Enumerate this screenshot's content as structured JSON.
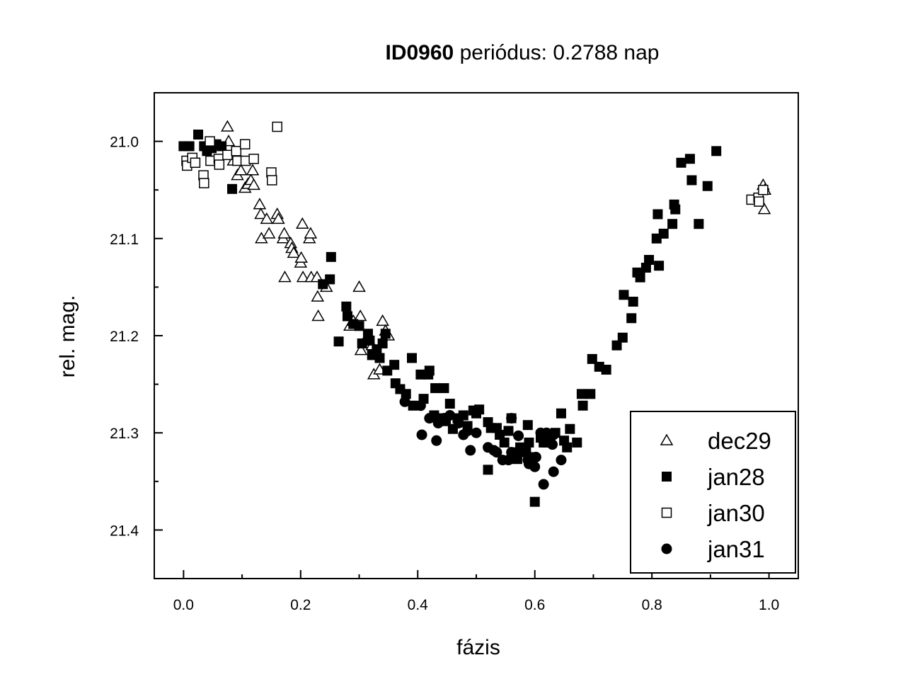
{
  "chart_data": {
    "type": "scatter",
    "title": {
      "bold": "ID0960",
      "rest": " periódus: 0.2788 nap"
    },
    "xlabel": "fázis",
    "ylabel": "rel. mag.",
    "xlim": [
      -0.05,
      1.05
    ],
    "ylim": [
      21.45,
      20.95
    ],
    "y_inverted": true,
    "xticks": [
      "0.0",
      "0.2",
      "0.4",
      "0.6",
      "0.8",
      "1.0"
    ],
    "xtick_values": [
      0,
      0.2,
      0.4,
      0.6,
      0.8,
      1.0
    ],
    "yticks": [
      "21.0",
      "21.1",
      "21.2",
      "21.3",
      "21.4"
    ],
    "ytick_values": [
      21.0,
      21.1,
      21.2,
      21.3,
      21.4
    ],
    "grid": false,
    "legend_position": "bottom-right",
    "series": [
      {
        "name": "dec29",
        "marker": "open-triangle",
        "points": [
          [
            0.075,
            20.985
          ],
          [
            0.077,
            21.0
          ],
          [
            0.085,
            21.02
          ],
          [
            0.092,
            21.035
          ],
          [
            0.098,
            21.03
          ],
          [
            0.105,
            21.048
          ],
          [
            0.11,
            21.044
          ],
          [
            0.115,
            21.04
          ],
          [
            0.118,
            21.03
          ],
          [
            0.12,
            21.045
          ],
          [
            0.13,
            21.065
          ],
          [
            0.132,
            21.075
          ],
          [
            0.133,
            21.1
          ],
          [
            0.142,
            21.08
          ],
          [
            0.146,
            21.095
          ],
          [
            0.16,
            21.075
          ],
          [
            0.162,
            21.08
          ],
          [
            0.17,
            21.1
          ],
          [
            0.172,
            21.095
          ],
          [
            0.173,
            21.14
          ],
          [
            0.183,
            21.105
          ],
          [
            0.185,
            21.11
          ],
          [
            0.188,
            21.115
          ],
          [
            0.2,
            21.125
          ],
          [
            0.201,
            21.12
          ],
          [
            0.203,
            21.085
          ],
          [
            0.204,
            21.14
          ],
          [
            0.215,
            21.1
          ],
          [
            0.217,
            21.095
          ],
          [
            0.218,
            21.14
          ],
          [
            0.228,
            21.14
          ],
          [
            0.229,
            21.16
          ],
          [
            0.23,
            21.18
          ],
          [
            0.244,
            21.15
          ],
          [
            0.284,
            21.19
          ],
          [
            0.29,
            21.185
          ],
          [
            0.3,
            21.15
          ],
          [
            0.302,
            21.18
          ],
          [
            0.303,
            21.215
          ],
          [
            0.31,
            21.205
          ],
          [
            0.322,
            21.21
          ],
          [
            0.325,
            21.24
          ],
          [
            0.335,
            21.235
          ],
          [
            0.34,
            21.185
          ],
          [
            0.345,
            21.195
          ],
          [
            0.35,
            21.2
          ],
          [
            0.99,
            21.045
          ],
          [
            0.992,
            21.07
          ],
          [
            0.993,
            21.05
          ]
        ]
      },
      {
        "name": "jan28",
        "marker": "filled-square",
        "points": [
          [
            0.0,
            21.005
          ],
          [
            0.01,
            21.005
          ],
          [
            0.025,
            20.993
          ],
          [
            0.035,
            21.005
          ],
          [
            0.04,
            21.01
          ],
          [
            0.048,
            21.007
          ],
          [
            0.056,
            21.003
          ],
          [
            0.065,
            21.005
          ],
          [
            0.083,
            21.049
          ],
          [
            0.238,
            21.147
          ],
          [
            0.25,
            21.142
          ],
          [
            0.252,
            21.119
          ],
          [
            0.265,
            21.206
          ],
          [
            0.278,
            21.17
          ],
          [
            0.28,
            21.18
          ],
          [
            0.29,
            21.188
          ],
          [
            0.3,
            21.19
          ],
          [
            0.305,
            21.208
          ],
          [
            0.315,
            21.198
          ],
          [
            0.318,
            21.205
          ],
          [
            0.322,
            21.22
          ],
          [
            0.33,
            21.214
          ],
          [
            0.335,
            21.223
          ],
          [
            0.34,
            21.208
          ],
          [
            0.345,
            21.198
          ],
          [
            0.348,
            21.236
          ],
          [
            0.36,
            21.23
          ],
          [
            0.362,
            21.249
          ],
          [
            0.37,
            21.255
          ],
          [
            0.38,
            21.26
          ],
          [
            0.39,
            21.223
          ],
          [
            0.392,
            21.272
          ],
          [
            0.405,
            21.24
          ],
          [
            0.41,
            21.265
          ],
          [
            0.418,
            21.24
          ],
          [
            0.42,
            21.236
          ],
          [
            0.428,
            21.282
          ],
          [
            0.43,
            21.254
          ],
          [
            0.435,
            21.285
          ],
          [
            0.445,
            21.254
          ],
          [
            0.448,
            21.288
          ],
          [
            0.455,
            21.27
          ],
          [
            0.46,
            21.296
          ],
          [
            0.468,
            21.285
          ],
          [
            0.478,
            21.282
          ],
          [
            0.485,
            21.293
          ],
          [
            0.495,
            21.277
          ],
          [
            0.5,
            21.28
          ],
          [
            0.505,
            21.276
          ],
          [
            0.52,
            21.338
          ],
          [
            0.52,
            21.289
          ],
          [
            0.525,
            21.295
          ],
          [
            0.535,
            21.295
          ],
          [
            0.54,
            21.302
          ],
          [
            0.548,
            21.31
          ],
          [
            0.555,
            21.298
          ],
          [
            0.56,
            21.285
          ],
          [
            0.565,
            21.32
          ],
          [
            0.57,
            21.327
          ],
          [
            0.575,
            21.315
          ],
          [
            0.58,
            21.318
          ],
          [
            0.585,
            21.32
          ],
          [
            0.588,
            21.292
          ],
          [
            0.59,
            21.31
          ],
          [
            0.595,
            21.325
          ],
          [
            0.6,
            21.371
          ],
          [
            0.61,
            21.305
          ],
          [
            0.615,
            21.31
          ],
          [
            0.62,
            21.31
          ],
          [
            0.625,
            21.31
          ],
          [
            0.635,
            21.3
          ],
          [
            0.645,
            21.28
          ],
          [
            0.65,
            21.308
          ],
          [
            0.655,
            21.315
          ],
          [
            0.66,
            21.296
          ],
          [
            0.672,
            21.31
          ],
          [
            0.68,
            21.26
          ],
          [
            0.682,
            21.272
          ],
          [
            0.695,
            21.26
          ],
          [
            0.698,
            21.224
          ],
          [
            0.71,
            21.232
          ],
          [
            0.722,
            21.235
          ],
          [
            0.74,
            21.21
          ],
          [
            0.75,
            21.202
          ],
          [
            0.752,
            21.158
          ],
          [
            0.765,
            21.182
          ],
          [
            0.768,
            21.165
          ],
          [
            0.775,
            21.135
          ],
          [
            0.78,
            21.14
          ],
          [
            0.79,
            21.13
          ],
          [
            0.795,
            21.122
          ],
          [
            0.808,
            21.1
          ],
          [
            0.812,
            21.128
          ],
          [
            0.81,
            21.075
          ],
          [
            0.82,
            21.095
          ],
          [
            0.835,
            21.085
          ],
          [
            0.838,
            21.065
          ],
          [
            0.84,
            21.07
          ],
          [
            0.85,
            21.022
          ],
          [
            0.865,
            21.018
          ],
          [
            0.868,
            21.04
          ],
          [
            0.88,
            21.085
          ],
          [
            0.895,
            21.046
          ],
          [
            0.91,
            21.01
          ]
        ]
      },
      {
        "name": "jan30",
        "marker": "open-square",
        "points": [
          [
            0.005,
            21.02
          ],
          [
            0.006,
            21.025
          ],
          [
            0.015,
            21.017
          ],
          [
            0.02,
            21.022
          ],
          [
            0.034,
            21.035
          ],
          [
            0.035,
            21.043
          ],
          [
            0.045,
            21.0
          ],
          [
            0.046,
            21.02
          ],
          [
            0.06,
            21.018
          ],
          [
            0.061,
            21.024
          ],
          [
            0.075,
            21.014
          ],
          [
            0.09,
            21.01
          ],
          [
            0.092,
            21.02
          ],
          [
            0.105,
            21.003
          ],
          [
            0.106,
            21.02
          ],
          [
            0.12,
            21.018
          ],
          [
            0.15,
            21.032
          ],
          [
            0.151,
            21.04
          ],
          [
            0.16,
            20.985
          ],
          [
            0.97,
            21.06
          ],
          [
            0.982,
            21.058
          ],
          [
            0.983,
            21.062
          ],
          [
            0.99,
            21.05
          ]
        ]
      },
      {
        "name": "jan31",
        "marker": "filled-circle",
        "points": [
          [
            0.378,
            21.268
          ],
          [
            0.405,
            21.272
          ],
          [
            0.407,
            21.302
          ],
          [
            0.42,
            21.285
          ],
          [
            0.432,
            21.308
          ],
          [
            0.435,
            21.29
          ],
          [
            0.445,
            21.285
          ],
          [
            0.455,
            21.282
          ],
          [
            0.47,
            21.29
          ],
          [
            0.478,
            21.302
          ],
          [
            0.485,
            21.298
          ],
          [
            0.49,
            21.318
          ],
          [
            0.5,
            21.3
          ],
          [
            0.52,
            21.315
          ],
          [
            0.53,
            21.318
          ],
          [
            0.535,
            21.32
          ],
          [
            0.545,
            21.328
          ],
          [
            0.555,
            21.328
          ],
          [
            0.56,
            21.32
          ],
          [
            0.56,
            21.285
          ],
          [
            0.572,
            21.303
          ],
          [
            0.58,
            21.318
          ],
          [
            0.588,
            21.328
          ],
          [
            0.59,
            21.332
          ],
          [
            0.6,
            21.335
          ],
          [
            0.602,
            21.325
          ],
          [
            0.61,
            21.3
          ],
          [
            0.615,
            21.353
          ],
          [
            0.62,
            21.3
          ],
          [
            0.63,
            21.312
          ],
          [
            0.632,
            21.302
          ],
          [
            0.632,
            21.34
          ],
          [
            0.645,
            21.328
          ]
        ]
      }
    ]
  }
}
